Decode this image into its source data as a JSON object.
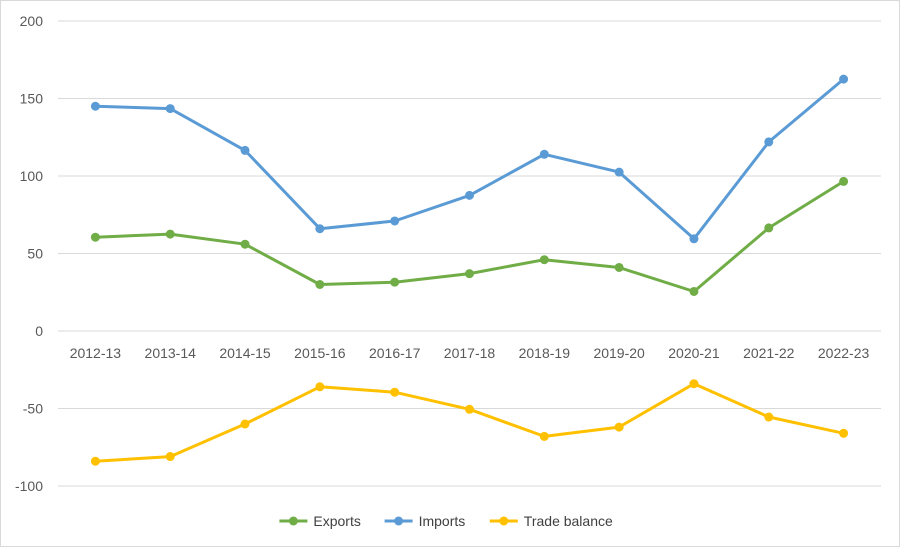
{
  "chart_data": {
    "type": "line",
    "title": "",
    "xlabel": "",
    "ylabel": "",
    "categories": [
      "2012-13",
      "2013-14",
      "2014-15",
      "2015-16",
      "2016-17",
      "2017-18",
      "2018-19",
      "2019-20",
      "2020-21",
      "2021-22",
      "2022-23"
    ],
    "ylim": [
      -120,
      200
    ],
    "yticks": [
      -100,
      -50,
      0,
      50,
      100,
      150,
      200
    ],
    "grid": true,
    "legend_position": "bottom",
    "series": [
      {
        "name": "Exports",
        "color": "#70AD47",
        "values": [
          60.5,
          62.5,
          56,
          30,
          31.5,
          37,
          46,
          41,
          25.5,
          66.5,
          96.5
        ]
      },
      {
        "name": "Imports",
        "color": "#5B9BD5",
        "values": [
          145,
          143.5,
          116.5,
          66,
          71,
          87.5,
          114,
          102.5,
          59.5,
          122,
          162.5
        ]
      },
      {
        "name": "Trade balance",
        "color": "#FFC000",
        "values": [
          -84,
          -81,
          -60,
          -36,
          -39.5,
          -50.5,
          -68,
          -62,
          -34,
          -55.5,
          -66
        ]
      }
    ]
  }
}
